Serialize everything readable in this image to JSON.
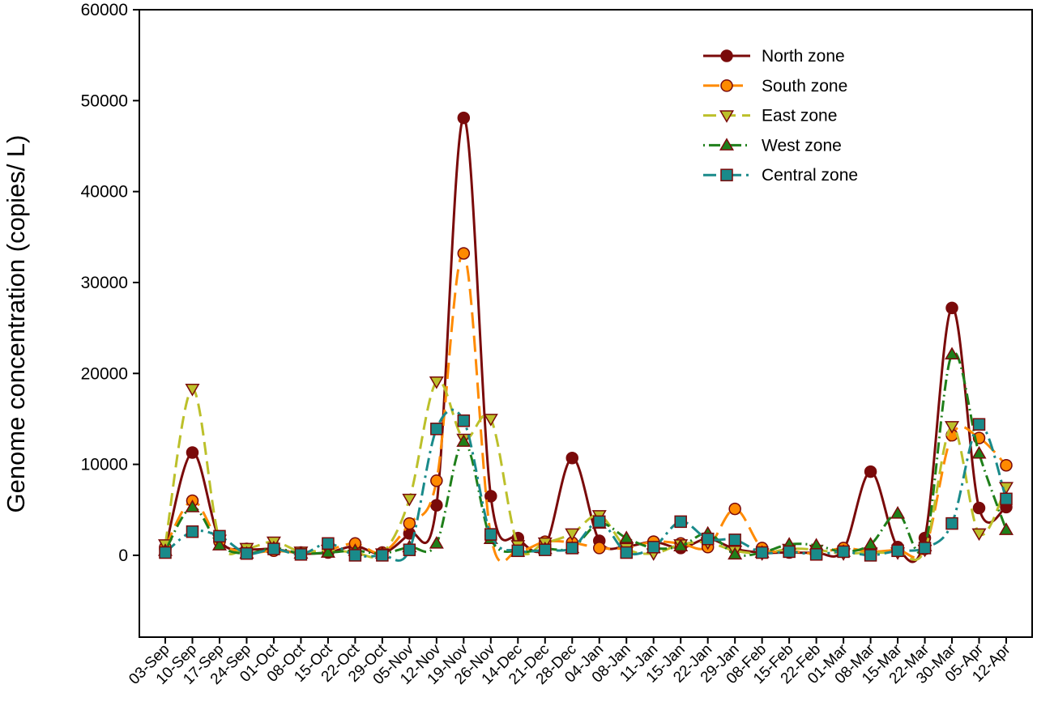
{
  "chart_data": {
    "type": "line",
    "title": "",
    "xlabel": "",
    "ylabel": "Genome concentration (copies/ L)",
    "ylim": [
      -9000,
      60000
    ],
    "yticks": [
      0,
      10000,
      20000,
      30000,
      40000,
      50000,
      60000
    ],
    "grid": false,
    "legend_position": "top-right",
    "categories": [
      "03-Sep",
      "10-Sep",
      "17-Sep",
      "24-Sep",
      "01-Oct",
      "08-Oct",
      "15-Oct",
      "22-Oct",
      "29-Oct",
      "05-Nov",
      "12-Nov",
      "19-Nov",
      "26-Nov",
      "14-Dec",
      "21-Dec",
      "28-Dec",
      "04-Jan",
      "08-Jan",
      "11-Jan",
      "15-Jan",
      "22-Jan",
      "29-Jan",
      "08-Feb",
      "15-Feb",
      "22-Feb",
      "01-Mar",
      "08-Mar",
      "15-Mar",
      "22-Mar",
      "30-Mar",
      "05-Apr",
      "12-Apr"
    ],
    "series": [
      {
        "name": "North zone",
        "color": "#7a0a0a",
        "marker": "circle",
        "dash": "",
        "values": [
          700,
          11300,
          1800,
          700,
          700,
          200,
          300,
          1000,
          200,
          2400,
          5500,
          48100,
          6500,
          1900,
          1000,
          10700,
          1600,
          1000,
          1500,
          800,
          1800,
          700,
          300,
          300,
          300,
          600,
          9200,
          900,
          1900,
          27200,
          5200,
          5300
        ]
      },
      {
        "name": "South zone",
        "color": "#ff8a00",
        "marker": "circle",
        "dash": "20,9",
        "values": [
          900,
          6000,
          1500,
          300,
          500,
          300,
          600,
          1300,
          300,
          3500,
          8200,
          33200,
          2200,
          500,
          1500,
          1400,
          800,
          800,
          1500,
          1300,
          900,
          5100,
          800,
          500,
          200,
          800,
          400,
          600,
          700,
          13200,
          12900,
          9900
        ]
      },
      {
        "name": "East zone",
        "color": "#bcc02a",
        "marker": "triangle-down",
        "dash": "16,8",
        "values": [
          1200,
          18300,
          1700,
          800,
          1500,
          400,
          600,
          300,
          200,
          6200,
          19100,
          12800,
          15000,
          1100,
          1400,
          2400,
          4400,
          800,
          200,
          1200,
          1400,
          500,
          200,
          700,
          600,
          200,
          300,
          300,
          600,
          14200,
          2400,
          7500
        ]
      },
      {
        "name": "West zone",
        "color": "#1f7f1a",
        "marker": "triangle-up",
        "dash": "2,5,14,5",
        "values": [
          500,
          5300,
          1100,
          200,
          800,
          200,
          300,
          500,
          200,
          900,
          1300,
          12500,
          1800,
          400,
          700,
          800,
          3500,
          1900,
          800,
          1000,
          2400,
          100,
          300,
          1200,
          1100,
          400,
          1200,
          4600,
          1000,
          22100,
          11200,
          2800
        ]
      },
      {
        "name": "Central zone",
        "color": "#198a8a",
        "marker": "square",
        "dash": "16,6,3,6",
        "values": [
          300,
          2600,
          2100,
          200,
          700,
          100,
          1300,
          0,
          0,
          600,
          13900,
          14800,
          2300,
          500,
          600,
          800,
          3700,
          300,
          900,
          3700,
          1800,
          1700,
          300,
          400,
          100,
          400,
          0,
          500,
          800,
          3500,
          14400,
          6200
        ]
      }
    ]
  }
}
